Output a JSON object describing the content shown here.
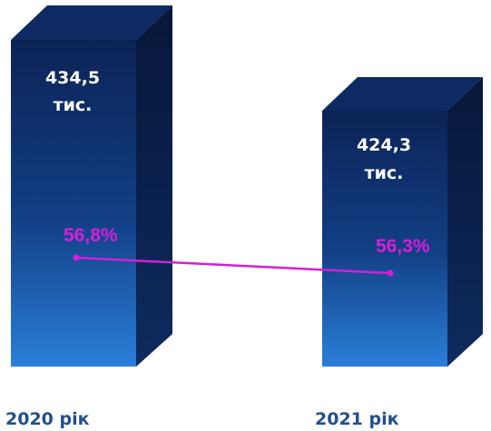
{
  "chart_data": {
    "type": "bar",
    "categories": [
      "2020 рік",
      "2021 рік"
    ],
    "values": [
      434.5,
      424.3
    ],
    "bar_labels": [
      {
        "line1": "434,5",
        "line2": "тис."
      },
      {
        "line1": "424,3",
        "line2": "тис."
      }
    ],
    "percent_series": {
      "values": [
        56.8,
        56.3
      ],
      "labels": [
        "56,8%",
        "56,3%"
      ],
      "color": "#d51fd7"
    },
    "colors": {
      "bar_front_top": "#0c2356",
      "bar_front_mid": "#123f85",
      "bar_front_bottom": "#2a7fd9",
      "bar_side": "#0a1c44",
      "bar_top": "#0d2a63",
      "category_text": "#1f4f8f"
    }
  }
}
